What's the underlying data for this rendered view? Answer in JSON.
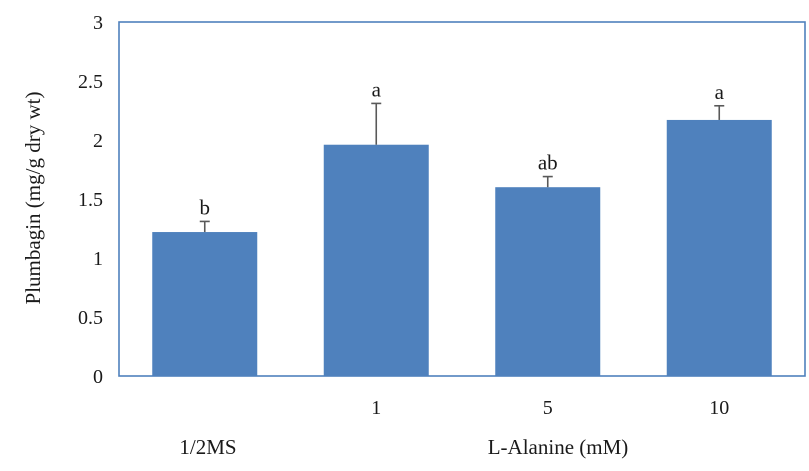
{
  "chart_data": {
    "type": "bar",
    "categories": [
      "",
      "1",
      "5",
      "10"
    ],
    "values": [
      1.22,
      1.96,
      1.6,
      2.17
    ],
    "error_bars": [
      0.09,
      0.35,
      0.09,
      0.12
    ],
    "significance_labels": [
      "b",
      "a",
      "ab",
      "a"
    ],
    "title": "",
    "xlabel": "L-Alanine (mM)",
    "control_label": "1/2MS",
    "ylabel": "Plumbagin (mg/g dry wt)",
    "ylim": [
      0,
      3
    ],
    "yticks": [
      "0",
      "0.5",
      "1",
      "1.5",
      "2",
      "2.5",
      "3"
    ],
    "grid": false,
    "legend": "none",
    "bar_color": "#4f81bd",
    "frame_color": "#4f81bd",
    "errorbar_color": "#595959"
  }
}
